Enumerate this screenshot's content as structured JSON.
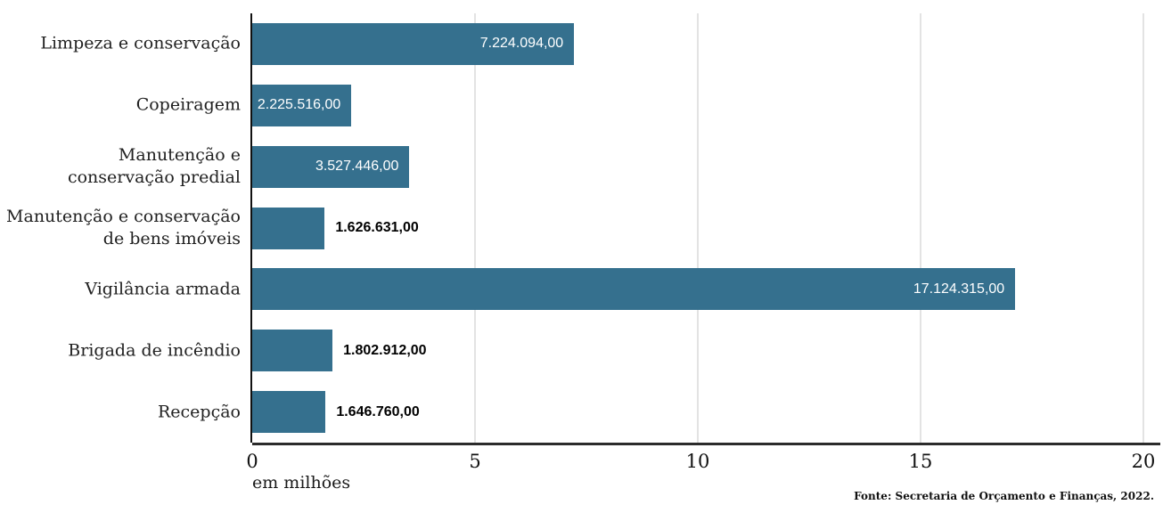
{
  "chart_data": {
    "type": "bar",
    "orientation": "horizontal",
    "title": "",
    "xlabel": "em milhões",
    "ylabel": "",
    "xlim": [
      0,
      20000000
    ],
    "x_ticks": [
      0,
      5,
      10,
      15,
      20
    ],
    "grid": true,
    "bar_color": "#35708E",
    "categories": [
      "Limpeza e conservação",
      "Copeiragem",
      "Manutenção e conservação predial",
      "Manutenção e conservação de bens imóveis",
      "Vigilância armada",
      "Brigada de incêndio",
      "Recepção"
    ],
    "category_lines": [
      [
        "Limpeza e conservação"
      ],
      [
        "Copeiragem"
      ],
      [
        "Manutenção e",
        "conservação predial"
      ],
      [
        "Manutenção e conservação",
        "de bens imóveis"
      ],
      [
        "Vigilância armada"
      ],
      [
        "Brigada de incêndio"
      ],
      [
        "Recepção"
      ]
    ],
    "values": [
      7224094,
      2225516,
      3527446,
      1626631,
      17124315,
      1802912,
      1646760
    ],
    "value_labels": [
      "7.224.094,00",
      "2.225.516,00",
      "3.527.446,00",
      "1.626.631,00",
      "17.124.315,00",
      "1.802.912,00",
      "1.646.760,00"
    ]
  },
  "footer": {
    "source": "Fonte: Secretaria de Orçamento e Finanças, 2022."
  }
}
